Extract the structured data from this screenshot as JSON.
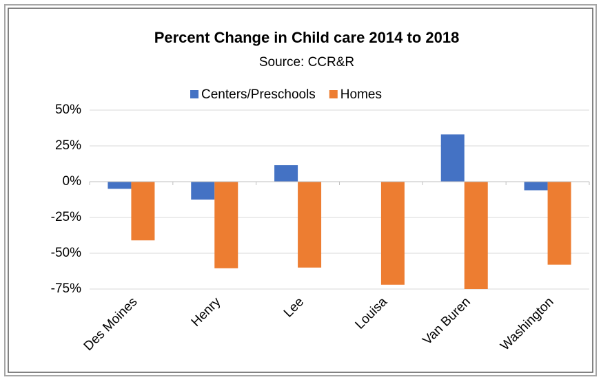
{
  "chart_data": {
    "type": "bar",
    "title": "Percent Change in Child care 2014 to 2018",
    "subtitle": "Source: CCR&R",
    "categories": [
      "Des Moines",
      "Henry",
      "Lee",
      "Louisa",
      "Van Buren",
      "Washington"
    ],
    "series": [
      {
        "name": "Centers/Preschools",
        "color": "#4472c4",
        "values": [
          -5,
          -12.5,
          11.5,
          0,
          33,
          -6
        ]
      },
      {
        "name": "Homes",
        "color": "#ed7d31",
        "values": [
          -41,
          -60.5,
          -60,
          -72,
          -75,
          -58
        ]
      }
    ],
    "ylim": [
      -75,
      50
    ],
    "yticks": [
      {
        "value": 50,
        "label": "50%"
      },
      {
        "value": 25,
        "label": "25%"
      },
      {
        "value": 0,
        "label": "0%"
      },
      {
        "value": -25,
        "label": "-25%"
      },
      {
        "value": -50,
        "label": "-50%"
      },
      {
        "value": -75,
        "label": "-75%"
      }
    ],
    "grid": true,
    "legend": "top"
  }
}
